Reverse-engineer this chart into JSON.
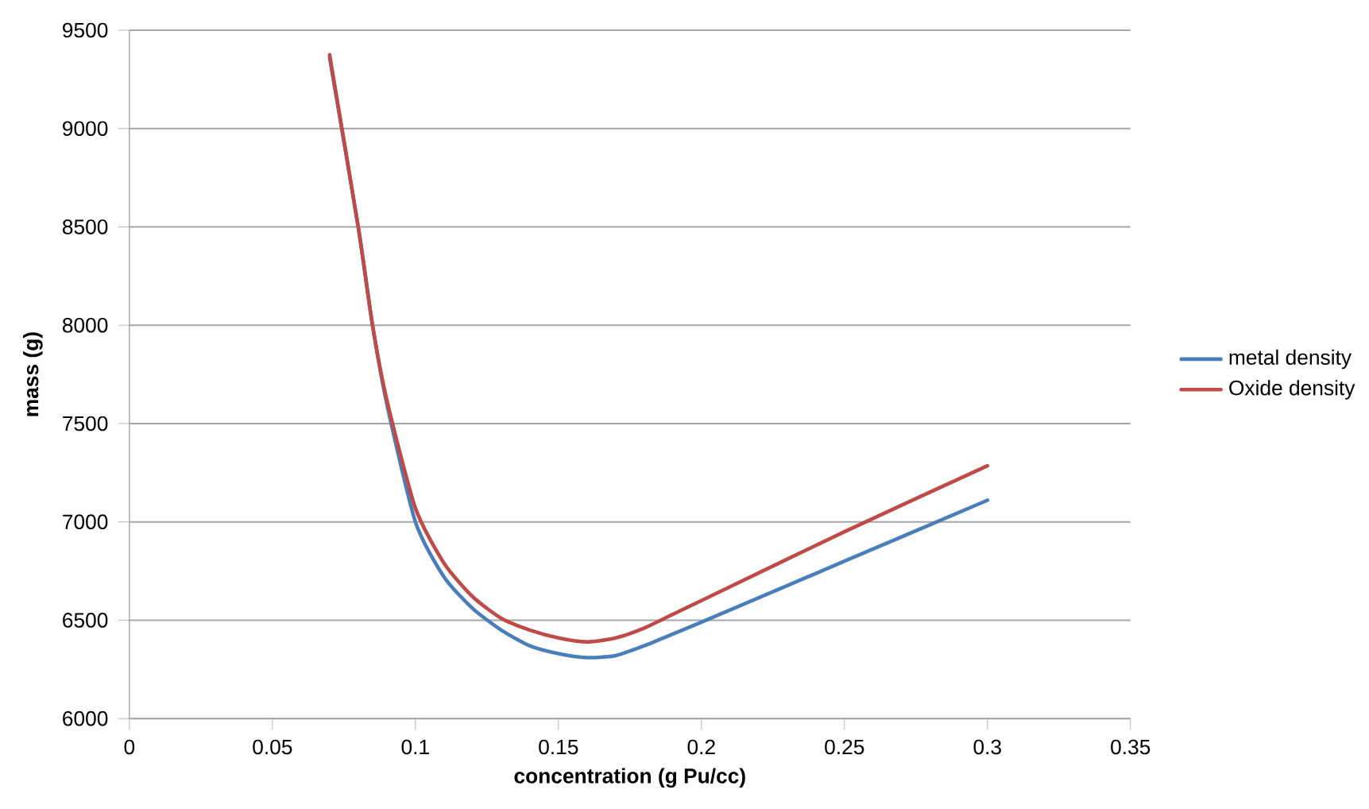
{
  "chart_data": {
    "type": "line",
    "xlabel": "concentration (g Pu/cc)",
    "ylabel": "mass (g)",
    "x": [
      0.07,
      0.08,
      0.085,
      0.09,
      0.1,
      0.11,
      0.12,
      0.13,
      0.14,
      0.15,
      0.16,
      0.17,
      0.18,
      0.19,
      0.2,
      0.25,
      0.3
    ],
    "series": [
      {
        "name": "metal density",
        "color": "#4a7ebb",
        "values": [
          9360,
          8500,
          8000,
          7600,
          7000,
          6720,
          6560,
          6450,
          6370,
          6330,
          6310,
          6320,
          6370,
          6430,
          6490,
          6800,
          7110
        ]
      },
      {
        "name": "Oxide density",
        "color": "#be4b48",
        "values": [
          9375,
          8500,
          8000,
          7620,
          7070,
          6790,
          6620,
          6510,
          6450,
          6410,
          6390,
          6410,
          6460,
          6530,
          6600,
          6950,
          7285
        ]
      }
    ],
    "xlim": [
      0,
      0.35
    ],
    "xticks": [
      0,
      0.05,
      0.1,
      0.15,
      0.2,
      0.25,
      0.3,
      0.35
    ],
    "ylim": [
      6000,
      9500
    ],
    "yticks": [
      6000,
      6500,
      7000,
      7500,
      8000,
      8500,
      9000,
      9500
    ],
    "grid": "y",
    "legend": "right",
    "line_style": "solid"
  }
}
